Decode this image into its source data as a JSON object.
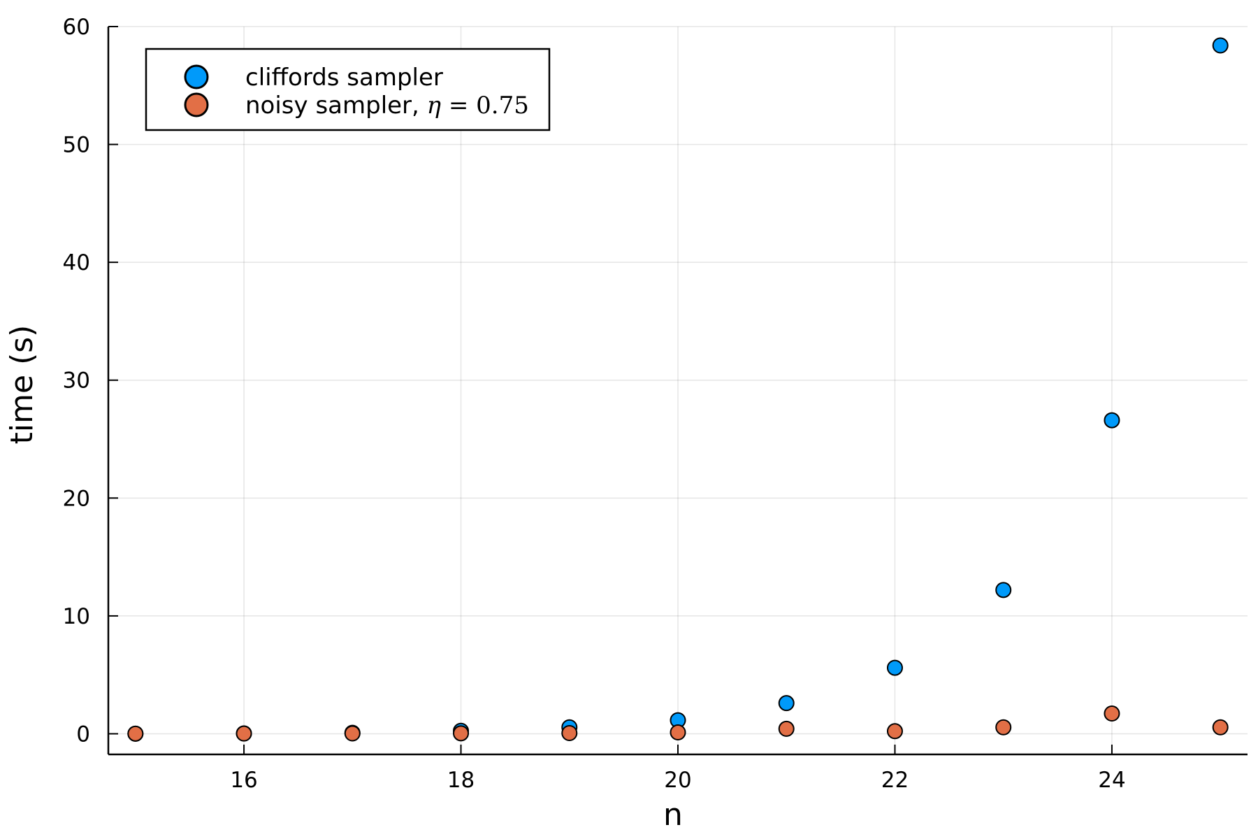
{
  "chart_data": {
    "type": "scatter",
    "title": "",
    "xlabel": "n",
    "ylabel": "time (s)",
    "xlim": [
      14.75,
      25.25
    ],
    "ylim": [
      -1.75,
      60
    ],
    "xticks": [
      16,
      18,
      20,
      22,
      24
    ],
    "yticks": [
      0,
      10,
      20,
      30,
      40,
      50,
      60
    ],
    "grid": true,
    "legend_position": "top-left",
    "x": [
      15,
      16,
      17,
      18,
      19,
      20,
      21,
      22,
      23,
      24,
      25
    ],
    "series": [
      {
        "name": "cliffords sampler",
        "color": "#009AFA",
        "values": [
          0.01,
          0.03,
          0.08,
          0.25,
          0.55,
          1.15,
          2.6,
          5.6,
          12.2,
          26.6,
          58.4
        ]
      },
      {
        "name": "noisy sampler, ",
        "name_math": {
          "symbol": "η",
          "relation": " = ",
          "value": "0.75"
        },
        "color": "#E26F46",
        "values": [
          0.01,
          0.02,
          0.03,
          0.04,
          0.06,
          0.12,
          0.42,
          0.22,
          0.55,
          1.72,
          0.55
        ]
      }
    ]
  }
}
